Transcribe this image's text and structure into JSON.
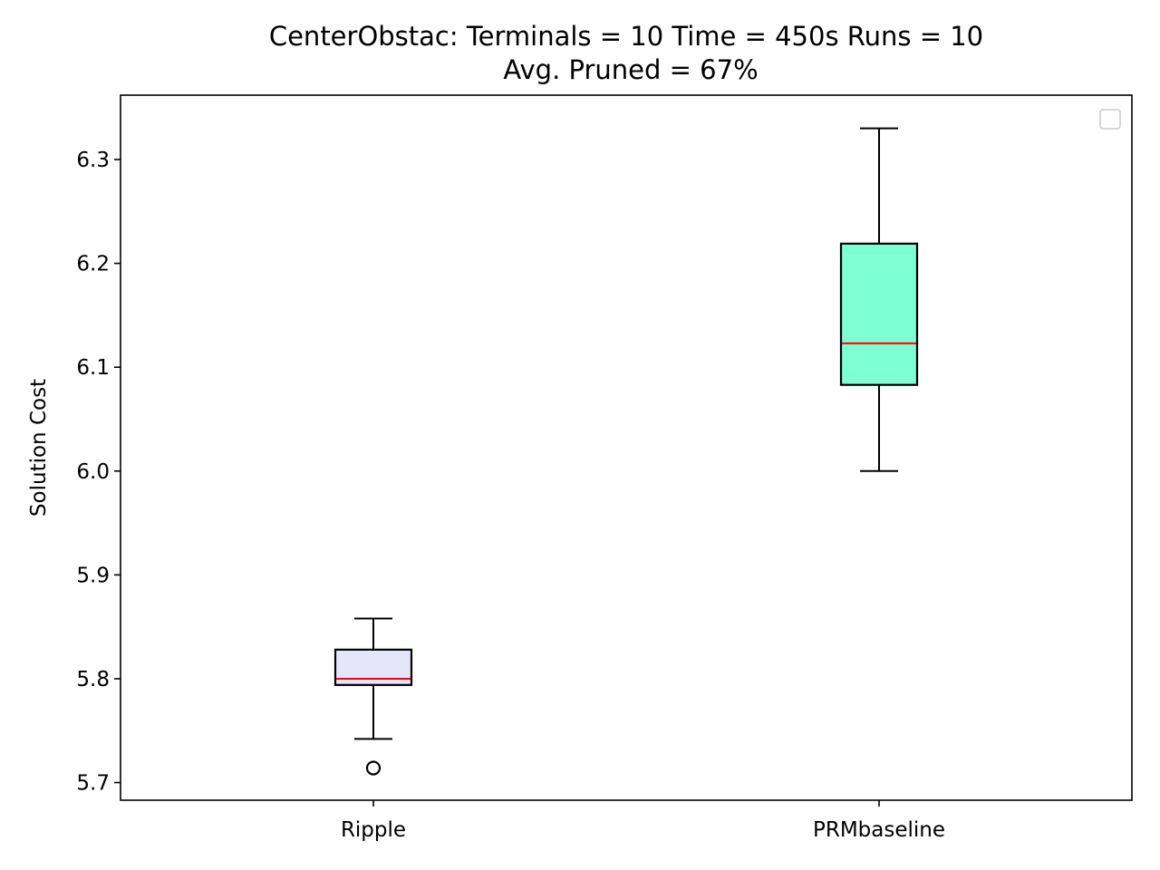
{
  "chart_data": {
    "type": "box",
    "title_line1": "CenterObstac:  Terminals = 10  Time = 450s  Runs = 10",
    "title_line2": "Avg. Pruned = 67%",
    "xlabel": "",
    "ylabel": "Solution Cost",
    "ylim": [
      5.683,
      6.362
    ],
    "yticks": [
      5.7,
      5.8,
      5.9,
      6.0,
      6.1,
      6.2,
      6.3
    ],
    "ytick_labels": [
      "5.7",
      "5.8",
      "5.9",
      "6.0",
      "6.1",
      "6.2",
      "6.3"
    ],
    "categories": [
      "Ripple",
      "PRMbaseline"
    ],
    "boxes": [
      {
        "category": "Ripple",
        "whisker_low": 5.742,
        "q1": 5.794,
        "median": 5.8,
        "q3": 5.828,
        "whisker_high": 5.858,
        "outliers": [
          5.714
        ],
        "fill": "#e6e6fa"
      },
      {
        "category": "PRMbaseline",
        "whisker_low": 6.0,
        "q1": 6.083,
        "median": 6.123,
        "q3": 6.219,
        "whisker_high": 6.33,
        "outliers": [],
        "fill": "#7fffd4"
      }
    ],
    "median_color": "#ff0000",
    "grid": false,
    "legend": {
      "placement": "top-right",
      "entries": []
    }
  }
}
